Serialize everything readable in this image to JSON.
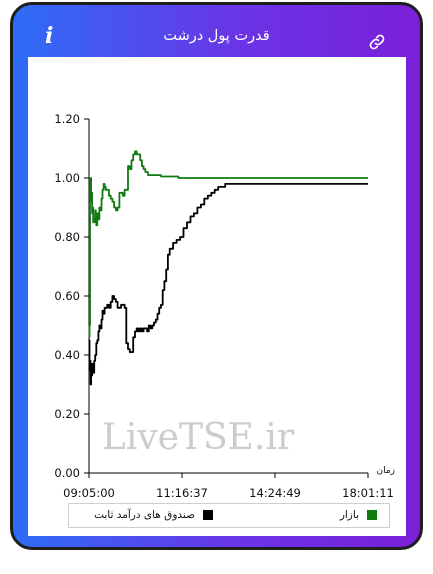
{
  "header": {
    "title": "قدرت پول درشت",
    "info_icon": "i",
    "link_icon": "link-icon"
  },
  "watermark": "LiveTSE.ir",
  "colors": {
    "market": "#117a11",
    "fixed_income": "#000000",
    "frame_gradient_start": "#2d6df6",
    "frame_gradient_end": "#7a1fd8"
  },
  "chart_data": {
    "type": "line",
    "xlabel": "زمان",
    "ylabel": "",
    "ylim": [
      0,
      1.2
    ],
    "y_ticks": [
      "0.00",
      "0.20",
      "0.40",
      "0.60",
      "0.80",
      "1.00",
      "1.20"
    ],
    "x_ticks": [
      "09:05:00",
      "11:16:37",
      "14:24:49",
      "18:01:11"
    ],
    "xlim_seconds": [
      32700,
      64871
    ],
    "grid": false,
    "legend_position": "bottom",
    "series": [
      {
        "name": "بازار",
        "color": "#117a11",
        "points": [
          [
            32700,
            0.46
          ],
          [
            32760,
            0.5
          ],
          [
            32820,
            0.98
          ],
          [
            32880,
            1.0
          ],
          [
            32940,
            0.92
          ],
          [
            33000,
            0.95
          ],
          [
            33060,
            0.88
          ],
          [
            33120,
            0.9
          ],
          [
            33180,
            0.85
          ],
          [
            33300,
            0.86
          ],
          [
            33420,
            0.89
          ],
          [
            33480,
            0.85
          ],
          [
            33540,
            0.84
          ],
          [
            33660,
            0.88
          ],
          [
            33780,
            0.86
          ],
          [
            33900,
            0.9
          ],
          [
            34020,
            0.89
          ],
          [
            34140,
            0.93
          ],
          [
            34260,
            0.96
          ],
          [
            34380,
            0.98
          ],
          [
            34500,
            0.97
          ],
          [
            34620,
            0.96
          ],
          [
            34800,
            0.96
          ],
          [
            35000,
            0.94
          ],
          [
            35200,
            0.93
          ],
          [
            35400,
            0.92
          ],
          [
            35600,
            0.9
          ],
          [
            35800,
            0.89
          ],
          [
            36000,
            0.9
          ],
          [
            36200,
            0.95
          ],
          [
            36400,
            0.95
          ],
          [
            36600,
            0.94
          ],
          [
            36800,
            0.96
          ],
          [
            37000,
            0.96
          ],
          [
            37200,
            1.04
          ],
          [
            37400,
            1.03
          ],
          [
            37600,
            1.06
          ],
          [
            37800,
            1.08
          ],
          [
            38000,
            1.09
          ],
          [
            38200,
            1.08
          ],
          [
            38400,
            1.08
          ],
          [
            38600,
            1.06
          ],
          [
            38800,
            1.04
          ],
          [
            39000,
            1.03
          ],
          [
            39200,
            1.02
          ],
          [
            39500,
            1.01
          ],
          [
            40000,
            1.01
          ],
          [
            41000,
            1.005
          ],
          [
            43000,
            1.0
          ],
          [
            46000,
            1.0
          ],
          [
            50000,
            1.0
          ],
          [
            55000,
            1.0
          ],
          [
            60000,
            1.0
          ],
          [
            64871,
            1.0
          ]
        ]
      },
      {
        "name": "صندوق های درآمد ثابت",
        "color": "#000000",
        "points": [
          [
            32700,
            0.45
          ],
          [
            32760,
            0.35
          ],
          [
            32820,
            0.38
          ],
          [
            32880,
            0.3
          ],
          [
            32940,
            0.34
          ],
          [
            33000,
            0.33
          ],
          [
            33060,
            0.37
          ],
          [
            33180,
            0.34
          ],
          [
            33300,
            0.38
          ],
          [
            33420,
            0.4
          ],
          [
            33540,
            0.44
          ],
          [
            33660,
            0.45
          ],
          [
            33780,
            0.48
          ],
          [
            33900,
            0.5
          ],
          [
            34020,
            0.49
          ],
          [
            34140,
            0.52
          ],
          [
            34260,
            0.55
          ],
          [
            34380,
            0.54
          ],
          [
            34500,
            0.56
          ],
          [
            34620,
            0.56
          ],
          [
            34800,
            0.57
          ],
          [
            35000,
            0.56
          ],
          [
            35200,
            0.58
          ],
          [
            35400,
            0.6
          ],
          [
            35600,
            0.59
          ],
          [
            35800,
            0.58
          ],
          [
            36000,
            0.56
          ],
          [
            36200,
            0.56
          ],
          [
            36400,
            0.57
          ],
          [
            36600,
            0.57
          ],
          [
            36800,
            0.56
          ],
          [
            37000,
            0.44
          ],
          [
            37200,
            0.42
          ],
          [
            37400,
            0.41
          ],
          [
            37600,
            0.41
          ],
          [
            37800,
            0.46
          ],
          [
            38000,
            0.48
          ],
          [
            38200,
            0.49
          ],
          [
            38400,
            0.48
          ],
          [
            38600,
            0.49
          ],
          [
            38800,
            0.48
          ],
          [
            39000,
            0.49
          ],
          [
            39200,
            0.49
          ],
          [
            39400,
            0.48
          ],
          [
            39600,
            0.5
          ],
          [
            39800,
            0.49
          ],
          [
            40000,
            0.5
          ],
          [
            40200,
            0.51
          ],
          [
            40400,
            0.52
          ],
          [
            40600,
            0.54
          ],
          [
            40800,
            0.56
          ],
          [
            41000,
            0.57
          ],
          [
            41200,
            0.62
          ],
          [
            41400,
            0.65
          ],
          [
            41600,
            0.69
          ],
          [
            41800,
            0.74
          ],
          [
            42000,
            0.76
          ],
          [
            42400,
            0.78
          ],
          [
            42800,
            0.79
          ],
          [
            43200,
            0.8
          ],
          [
            43600,
            0.83
          ],
          [
            44000,
            0.85
          ],
          [
            44400,
            0.87
          ],
          [
            44800,
            0.88
          ],
          [
            45200,
            0.9
          ],
          [
            45600,
            0.91
          ],
          [
            46000,
            0.93
          ],
          [
            46400,
            0.94
          ],
          [
            46800,
            0.95
          ],
          [
            47200,
            0.96
          ],
          [
            47600,
            0.97
          ],
          [
            48000,
            0.97
          ],
          [
            48400,
            0.98
          ],
          [
            49000,
            0.98
          ],
          [
            50000,
            0.98
          ],
          [
            55000,
            0.98
          ],
          [
            60000,
            0.98
          ],
          [
            64871,
            0.98
          ]
        ]
      }
    ]
  }
}
